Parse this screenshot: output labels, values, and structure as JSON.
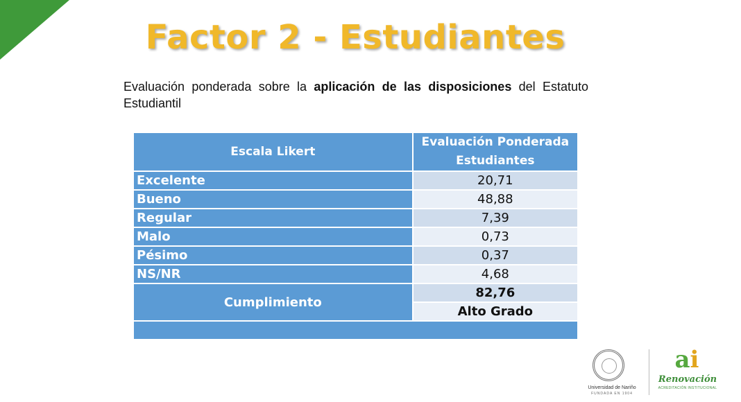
{
  "slide": {
    "title": "Factor 2 - Estudiantes",
    "intro": {
      "part1": "Evaluación ponderada sobre la ",
      "bold": "aplicación de las disposiciones",
      "part2": " del Estatuto Estudiantil"
    }
  },
  "table": {
    "header_scale": "Escala Likert",
    "header_eval_line1": "Evaluación Ponderada",
    "header_eval_line2": "Estudiantes",
    "rows": [
      {
        "label": "Excelente",
        "value": "20,71"
      },
      {
        "label": "Bueno",
        "value": "48,88"
      },
      {
        "label": "Regular",
        "value": "7,39"
      },
      {
        "label": "Malo",
        "value": "0,73"
      },
      {
        "label": "Pésimo",
        "value": "0,37"
      },
      {
        "label": "NS/NR",
        "value": "4,68"
      }
    ],
    "cumplimiento_label": "Cumplimiento",
    "cumplimiento_value": "82,76",
    "cumplimiento_grade": "Alto Grado"
  },
  "logos": {
    "university_name": "Universidad de Nariño",
    "university_sub": "FUNDADA EN 1904",
    "ai_a": "a",
    "ai_i": "i",
    "renovacion": "Renovación",
    "acreditacion": "ACREDITACIÓN INSTITUCIONAL"
  },
  "colors": {
    "header_blue": "#5b9bd5",
    "cell_dark": "#cfdcec",
    "cell_light": "#e9eff7",
    "title_gold": "#f0b82a",
    "corner_green": "#3f9a3a"
  }
}
